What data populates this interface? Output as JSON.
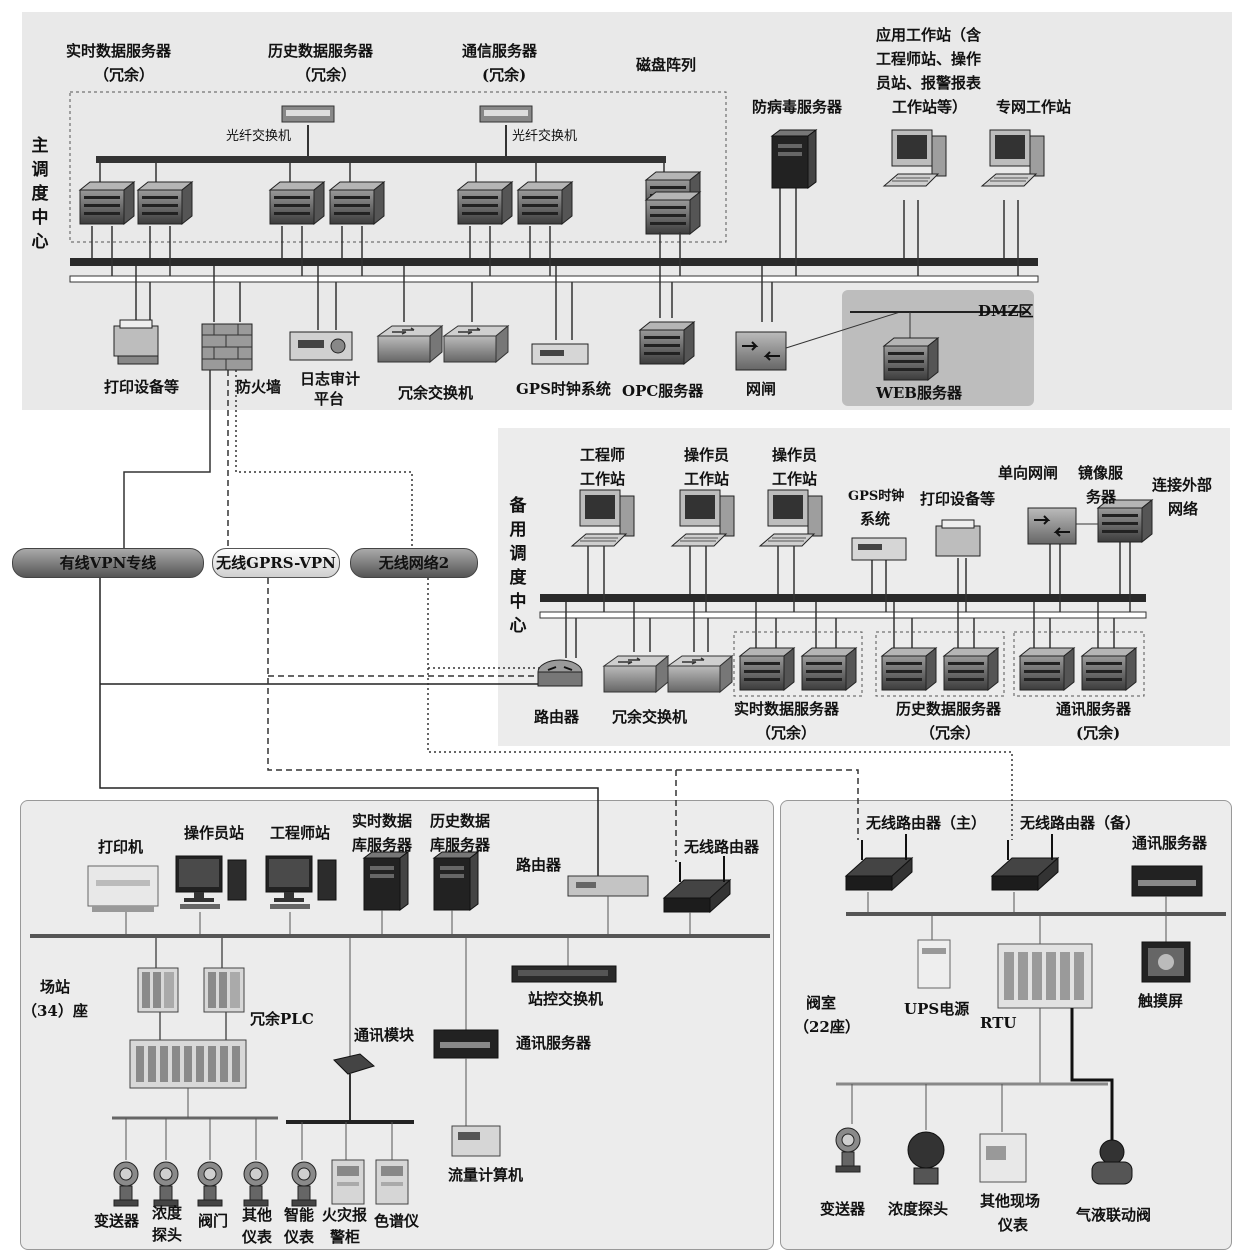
{
  "main": {
    "center_title": "主调度中心",
    "rt_server": "实时数据服务器",
    "rt_server_sub": "（冗余）",
    "hist_server": "历史数据服务器",
    "hist_server_sub": "（冗余）",
    "comm_server": "通信服务器",
    "comm_server_sub": "(冗余)",
    "disk_array": "磁盘阵列",
    "fiber_switch_1": "光纤交换机",
    "fiber_switch_2": "光纤交换机",
    "antivirus": "防病毒服务器",
    "app_ws_1": "应用工作站（含",
    "app_ws_2": "工程师站、操作",
    "app_ws_3": "员站、报警报表",
    "app_ws_4": "工作站等）",
    "private_ws": "专网工作站",
    "printer": "打印设备等",
    "firewall": "防火墙",
    "log_audit_1": "日志审计",
    "log_audit_2": "平台",
    "redundant_switch": "冗余交换机",
    "gps": "GPS时钟系统",
    "opc": "OPC服务器",
    "gatekeeper": "网闸",
    "dmz": "DMZ区",
    "web": "WEB服务器"
  },
  "links": {
    "wired_vpn": "有线VPN专线",
    "gprs_vpn": "无线GPRS-VPN",
    "wireless2": "无线网络2"
  },
  "backup": {
    "center_title": "备用调度中心",
    "eng_ws_1": "工程师",
    "eng_ws_2": "工作站",
    "op_ws_a_1": "操作员",
    "op_ws_a_2": "工作站",
    "op_ws_b_1": "操作员",
    "op_ws_b_2": "工作站",
    "gps_1": "GPS时钟",
    "gps_2": "系统",
    "printer": "打印设备等",
    "one_way_gate": "单向网闸",
    "mirror_1": "镜像服",
    "mirror_2": "务器",
    "external_1": "连接外部",
    "external_2": "网络",
    "router": "路由器",
    "redundant_switch": "冗余交换机",
    "rt_server": "实时数据服务器",
    "rt_server_sub": "（冗余）",
    "hist_server": "历史数据服务器",
    "hist_server_sub": "（冗余）",
    "comm_server": "通讯服务器",
    "comm_server_sub": "(冗余)"
  },
  "station": {
    "title_1": "场站",
    "title_2": "（34）座",
    "printer": "打印机",
    "op_ws": "操作员站",
    "eng_ws": "工程师站",
    "rt_db_1": "实时数据",
    "rt_db_2": "库服务器",
    "hist_db_1": "历史数据",
    "hist_db_2": "库服务器",
    "router": "路由器",
    "wireless_router": "无线路由器",
    "redundant_plc": "冗余PLC",
    "station_switch": "站控交换机",
    "comm_module": "通讯模块",
    "comm_server": "通讯服务器",
    "flow_computer": "流量计算机",
    "transmitter": "变送器",
    "conc_probe_1": "浓度",
    "conc_probe_2": "探头",
    "valve": "阀门",
    "other_inst_1": "其他",
    "other_inst_2": "仪表",
    "smart_inst_1": "智能",
    "smart_inst_2": "仪表",
    "fire_alarm_1": "火灾报",
    "fire_alarm_2": "警柜",
    "chromatograph": "色谱仪"
  },
  "valve_room": {
    "title_1": "阀室",
    "title_2": "（22座）",
    "wireless_main": "无线路由器（主）",
    "wireless_backup": "无线路由器（备）",
    "comm_server": "通讯服务器",
    "ups": "UPS电源",
    "rtu": "RTU",
    "touch_screen": "触摸屏",
    "transmitter": "变送器",
    "conc_probe": "浓度探头",
    "other_field_1": "其他现场",
    "other_field_2": "仪表",
    "gas_liquid_valve": "气液联动阀"
  }
}
